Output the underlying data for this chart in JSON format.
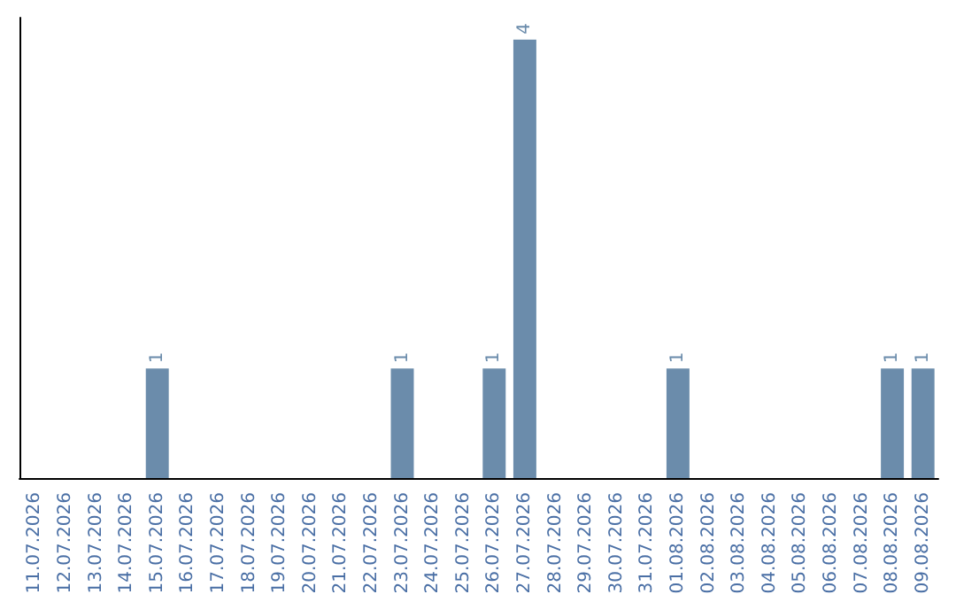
{
  "chart_data": {
    "type": "bar",
    "categories": [
      "11.07.2026",
      "12.07.2026",
      "13.07.2026",
      "14.07.2026",
      "15.07.2026",
      "16.07.2026",
      "17.07.2026",
      "18.07.2026",
      "19.07.2026",
      "20.07.2026",
      "21.07.2026",
      "22.07.2026",
      "23.07.2026",
      "24.07.2026",
      "25.07.2026",
      "26.07.2026",
      "27.07.2026",
      "28.07.2026",
      "29.07.2026",
      "30.07.2026",
      "31.07.2026",
      "01.08.2026",
      "02.08.2026",
      "03.08.2026",
      "04.08.2026",
      "05.08.2026",
      "06.08.2026",
      "07.08.2026",
      "08.08.2026",
      "09.08.2026"
    ],
    "values": [
      0,
      0,
      0,
      0,
      1,
      0,
      0,
      0,
      0,
      0,
      0,
      0,
      1,
      0,
      0,
      1,
      4,
      0,
      0,
      0,
      0,
      1,
      0,
      0,
      0,
      0,
      0,
      0,
      1,
      1
    ],
    "value_labels": [
      null,
      null,
      null,
      null,
      "1",
      null,
      null,
      null,
      null,
      null,
      null,
      null,
      "1",
      null,
      null,
      "1",
      "4",
      null,
      null,
      null,
      null,
      "1",
      null,
      null,
      null,
      null,
      null,
      null,
      "1",
      "1"
    ],
    "color": "#6b8cab",
    "ylim": [
      0,
      4.2
    ],
    "tick_labels": "x",
    "grid": false
  }
}
